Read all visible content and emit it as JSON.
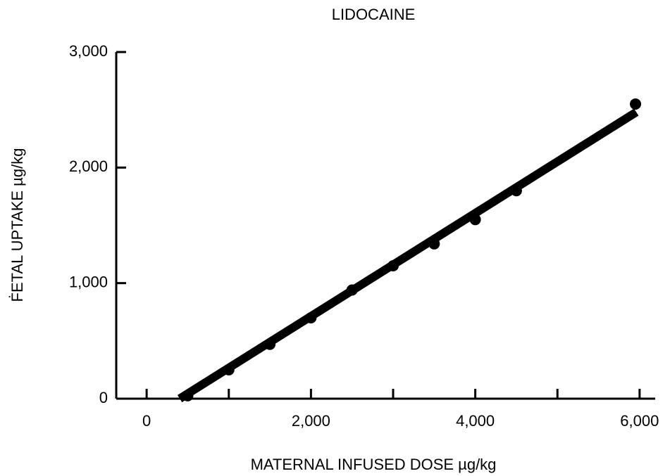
{
  "chart_data": {
    "type": "scatter",
    "title": "LIDOCAINE",
    "x_label": "MATERNAL INFUSED DOSE µg/kg",
    "y_label": "ḞETAL UPTAKE µg/kg",
    "xlim": [
      -370,
      6190
    ],
    "ylim": [
      0,
      3000
    ],
    "xticks": [
      0,
      {
        "value": 2000,
        "label": "2,000"
      },
      {
        "value": 4000,
        "label": "4,000"
      },
      {
        "value": 6000,
        "label": "6,000"
      }
    ],
    "xminorticks": [
      1000,
      3000,
      5000
    ],
    "yticks": [
      0,
      {
        "value": 1000,
        "label": "1,000"
      },
      {
        "value": 2000,
        "label": "2,000"
      },
      {
        "value": 3000,
        "label": "3,000"
      }
    ],
    "points": {
      "color": "#000000",
      "x": [
        500,
        1000,
        1500,
        2000,
        2500,
        3000,
        3500,
        4000,
        4500,
        5950
      ],
      "y": [
        25,
        250,
        470,
        700,
        940,
        1150,
        1340,
        1550,
        1800,
        2550
      ]
    },
    "fit_line": {
      "color": "#000000",
      "x": [
        403,
        5960
      ],
      "y": [
        0,
        2480
      ]
    }
  }
}
